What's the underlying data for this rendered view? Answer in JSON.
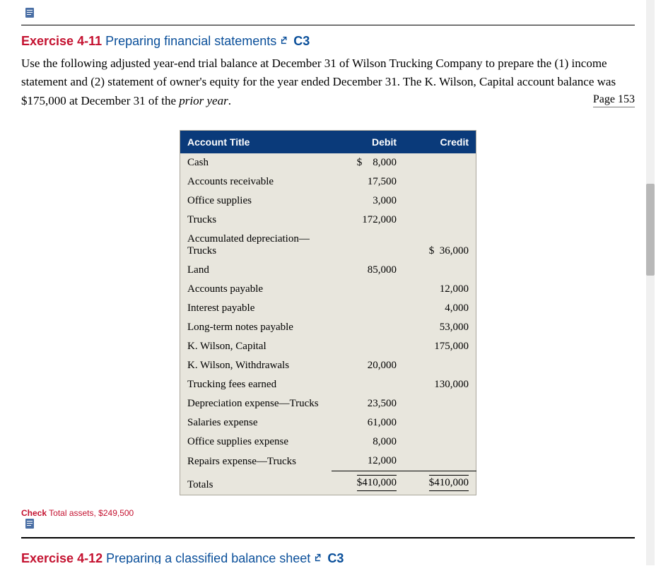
{
  "exercise": {
    "number": "Exercise 4-11",
    "title": "Preparing financial statements",
    "code": "C3"
  },
  "body_text": "Use the following adjusted year-end trial balance at December 31 of Wilson Trucking Company to prepare the (1) income statement and (2) statement of owner's equity for the year ended December 31. The K. Wilson, Capital account balance was $175,000 at December 31 of the ",
  "body_italic": "prior year",
  "body_tail": ".",
  "page_label": "Page 153",
  "table": {
    "header_bg": "#0a3a7a",
    "body_bg": "#e8e6dd",
    "columns": [
      "Account Title",
      "Debit",
      "Credit"
    ],
    "rows": [
      {
        "acct": "Cash",
        "debit": "8,000",
        "debit_sym": "$",
        "credit": ""
      },
      {
        "acct": "Accounts receivable",
        "debit": "17,500",
        "credit": ""
      },
      {
        "acct": "Office supplies",
        "debit": "3,000",
        "credit": ""
      },
      {
        "acct": "Trucks",
        "debit": "172,000",
        "credit": ""
      },
      {
        "acct": "Accumulated depreciation—Trucks",
        "debit": "",
        "credit": "36,000",
        "credit_sym": "$"
      },
      {
        "acct": "Land",
        "debit": "85,000",
        "credit": ""
      },
      {
        "acct": "Accounts payable",
        "debit": "",
        "credit": "12,000"
      },
      {
        "acct": "Interest payable",
        "debit": "",
        "credit": "4,000"
      },
      {
        "acct": "Long-term notes payable",
        "debit": "",
        "credit": "53,000"
      },
      {
        "acct": "K. Wilson, Capital",
        "debit": "",
        "credit": "175,000"
      },
      {
        "acct": "K. Wilson, Withdrawals",
        "debit": "20,000",
        "credit": ""
      },
      {
        "acct": "Trucking fees earned",
        "debit": "",
        "credit": "130,000"
      },
      {
        "acct": "Depreciation expense—Trucks",
        "debit": "23,500",
        "credit": ""
      },
      {
        "acct": "Salaries expense",
        "debit": "61,000",
        "credit": ""
      },
      {
        "acct": "Office supplies expense",
        "debit": "8,000",
        "credit": ""
      },
      {
        "acct": "Repairs expense—Trucks",
        "debit": "12,000",
        "credit": "",
        "last": true
      }
    ],
    "totals": {
      "label": "Totals",
      "debit": "$410,000",
      "credit": "$410,000"
    }
  },
  "check": {
    "label": "Check",
    "text": " Total assets, $249,500"
  },
  "next_exercise": {
    "number": "Exercise 4-12",
    "title": "Preparing a classified balance sheet",
    "code": "C3"
  }
}
